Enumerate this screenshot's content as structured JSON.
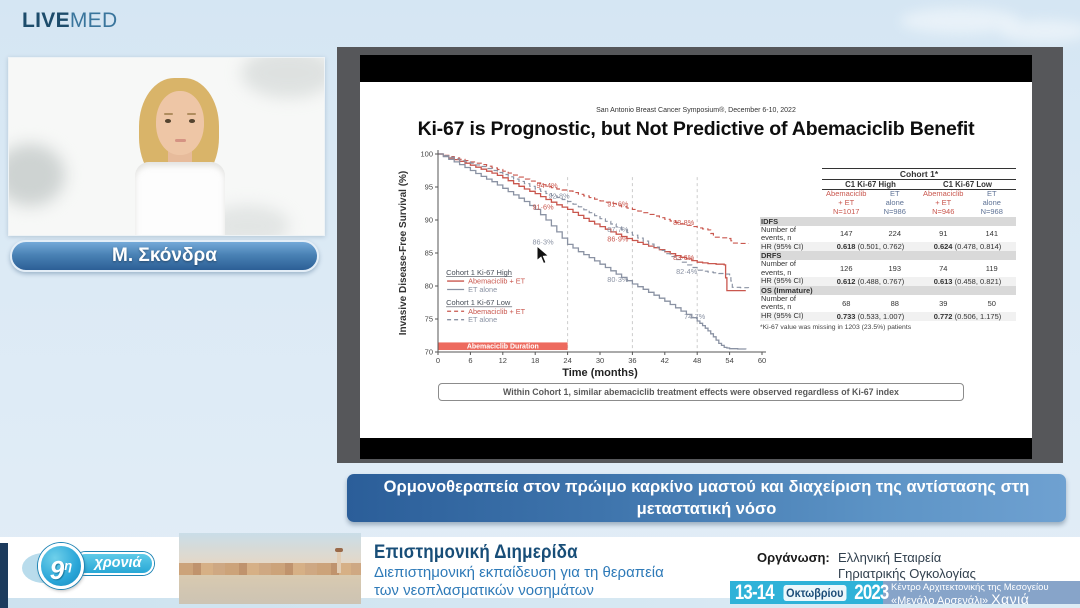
{
  "header": {
    "logo": {
      "live": "LIVE",
      "med": "MED"
    }
  },
  "speaker": {
    "name": "Μ. Σκόνδρα"
  },
  "session_title": "Ορμονοθεραπεία στον πρώιμο καρκίνο μαστού και διαχείριση της αντίστασης στη μεταστατική νόσο",
  "slide": {
    "symposium": "San Antonio Breast Cancer Symposium®, December 6-10, 2022",
    "title": "Ki-67 is Prognostic, but Not Predictive of Abemaciclib Benefit",
    "caption": "Within Cohort 1, similar abemaciclib treatment effects were observed regardless of Ki-67 index",
    "table": {
      "title": "Cohort 1*",
      "group_headers": [
        "C1 Ki-67 High",
        "C1 Ki-67 Low"
      ],
      "col_headers": [
        {
          "lines": [
            "Abemaciclib",
            "+ ET",
            "N=1017"
          ],
          "tone": "red"
        },
        {
          "lines": [
            "ET",
            "alone",
            "N=986"
          ],
          "tone": "blue"
        },
        {
          "lines": [
            "Abemaciclib",
            "+ ET",
            "N=946"
          ],
          "tone": "red"
        },
        {
          "lines": [
            "ET",
            "alone",
            "N=968"
          ],
          "tone": "blue"
        }
      ],
      "sections": [
        {
          "header": "IDFS",
          "events_label": "Number of events, n",
          "events": [
            "147",
            "224",
            "91",
            "141"
          ],
          "hr_label": "HR (95% CI)",
          "hr": [
            {
              "value": "0.618",
              "ci": " (0.501, 0.762)"
            },
            {
              "value": "0.624",
              "ci": " (0.478, 0.814)"
            }
          ]
        },
        {
          "header": "DRFS",
          "events_label": "Number of events, n",
          "events": [
            "126",
            "193",
            "74",
            "119"
          ],
          "hr_label": "HR (95% CI)",
          "hr": [
            {
              "value": "0.612",
              "ci": " (0.488, 0.767)"
            },
            {
              "value": "0.613",
              "ci": " (0.458, 0.821)"
            }
          ]
        },
        {
          "header": "OS (Immature)",
          "events_label": "Number of events, n",
          "events": [
            "68",
            "88",
            "39",
            "50"
          ],
          "hr_label": "HR (95% CI)",
          "hr": [
            {
              "value": "0.733",
              "ci": " (0.533, 1.007)"
            },
            {
              "value": "0.772",
              "ci": " (0.506, 1.175)"
            }
          ]
        }
      ],
      "footnote": "*Ki-67 value was missing in 1203 (23.5%) patients"
    }
  },
  "chart_data": {
    "type": "line",
    "subtype": "kaplan-meier",
    "title": "Ki-67 is Prognostic, but Not Predictive of Abemaciclib Benefit",
    "xlabel": "Time (months)",
    "ylabel": "Invasive Disease-Free Survival (%)",
    "xlim": [
      0,
      60
    ],
    "ylim": [
      70,
      100
    ],
    "xticks": [
      0,
      6,
      12,
      18,
      24,
      30,
      36,
      42,
      48,
      54,
      60
    ],
    "yticks": [
      70,
      75,
      80,
      85,
      90,
      95,
      100
    ],
    "grid": false,
    "reference_lines_x": [
      24,
      36,
      48
    ],
    "legend_position": "lower-left",
    "legend": [
      {
        "title": "Cohort 1 Ki-67 High",
        "items": [
          {
            "label": "Abemaciclib + ET",
            "style": "solid",
            "color": "#c9574e"
          },
          {
            "label": "ET alone",
            "style": "solid",
            "color": "#8a92a3"
          }
        ]
      },
      {
        "title": "Cohort 1 Ki-67 Low",
        "items": [
          {
            "label": "Abemaciclib + ET",
            "style": "dashed",
            "color": "#c9574e"
          },
          {
            "label": "ET alone",
            "style": "dashed",
            "color": "#8a92a3"
          }
        ]
      }
    ],
    "duration_bar": {
      "label": "Abemaciclib Duration",
      "x_start": 0,
      "x_end": 24,
      "color": "#ed6a5e"
    },
    "series": [
      {
        "name": "Cohort 1 Ki-67 High — Abemaciclib + ET",
        "style": "solid",
        "color": "#c9574e",
        "points": [
          [
            0,
            100
          ],
          [
            2,
            99.4
          ],
          [
            4,
            98.9
          ],
          [
            6,
            98.3
          ],
          [
            8,
            97.7
          ],
          [
            10,
            97.1
          ],
          [
            12,
            96.4
          ],
          [
            14,
            95.5
          ],
          [
            16,
            94.7
          ],
          [
            18,
            94.0
          ],
          [
            20,
            93.1
          ],
          [
            22,
            92.3
          ],
          [
            24,
            91.6
          ],
          [
            26,
            90.7
          ],
          [
            28,
            89.8
          ],
          [
            30,
            89.0
          ],
          [
            32,
            88.2
          ],
          [
            34,
            87.5
          ],
          [
            36,
            86.9
          ],
          [
            38,
            86.3
          ],
          [
            40,
            85.8
          ],
          [
            42,
            85.2
          ],
          [
            44,
            84.6
          ],
          [
            46,
            84.1
          ],
          [
            48,
            83.6
          ],
          [
            50,
            83.4
          ],
          [
            53,
            83.2
          ],
          [
            53.5,
            79.3
          ],
          [
            57,
            79.3
          ]
        ],
        "labels": [
          {
            "x": 24,
            "y": 91.6,
            "text": "91·6%",
            "dx": -14,
            "dy": 0
          },
          {
            "x": 36,
            "y": 86.9,
            "text": "86·9%",
            "dx": -4,
            "dy": 1
          },
          {
            "x": 48,
            "y": 83.6,
            "text": "83·6%",
            "dx": -3,
            "dy": -2
          }
        ]
      },
      {
        "name": "Cohort 1 Ki-67 High — ET alone",
        "style": "solid",
        "color": "#8a92a3",
        "points": [
          [
            0,
            100
          ],
          [
            2,
            99.2
          ],
          [
            4,
            98.4
          ],
          [
            6,
            97.5
          ],
          [
            8,
            96.6
          ],
          [
            10,
            95.8
          ],
          [
            12,
            94.8
          ],
          [
            14,
            93.8
          ],
          [
            16,
            92.8
          ],
          [
            18,
            91.6
          ],
          [
            20,
            90.0
          ],
          [
            22,
            88.2
          ],
          [
            24,
            86.3
          ],
          [
            26,
            85.2
          ],
          [
            28,
            84.3
          ],
          [
            30,
            83.3
          ],
          [
            32,
            82.3
          ],
          [
            34,
            81.3
          ],
          [
            36,
            80.3
          ],
          [
            38,
            79.5
          ],
          [
            40,
            78.6
          ],
          [
            42,
            77.7
          ],
          [
            44,
            76.7
          ],
          [
            46,
            75.7
          ],
          [
            48,
            74.7
          ],
          [
            49,
            74.0
          ],
          [
            50,
            73.2
          ],
          [
            51,
            72.3
          ],
          [
            52,
            71.3
          ],
          [
            53,
            70.7
          ],
          [
            54,
            70.5
          ],
          [
            57,
            70.4
          ]
        ],
        "labels": [
          {
            "x": 24,
            "y": 86.3,
            "text": "86·3%",
            "dx": -14,
            "dy": 0
          },
          {
            "x": 36,
            "y": 80.3,
            "text": "80·3%",
            "dx": -4,
            "dy": -2
          },
          {
            "x": 48,
            "y": 74.7,
            "text": "74·7%",
            "dx": 8,
            "dy": -2
          }
        ]
      },
      {
        "name": "Cohort 1 Ki-67 Low — Abemaciclib + ET",
        "style": "dashed",
        "color": "#c9574e",
        "points": [
          [
            0,
            100
          ],
          [
            2,
            99.6
          ],
          [
            4,
            99.2
          ],
          [
            6,
            98.8
          ],
          [
            8,
            98.4
          ],
          [
            10,
            97.9
          ],
          [
            12,
            97.4
          ],
          [
            14,
            96.8
          ],
          [
            16,
            96.2
          ],
          [
            18,
            95.6
          ],
          [
            20,
            95.1
          ],
          [
            22,
            94.7
          ],
          [
            24,
            94.4
          ],
          [
            26,
            93.9
          ],
          [
            28,
            93.4
          ],
          [
            30,
            92.9
          ],
          [
            32,
            92.5
          ],
          [
            34,
            92.0
          ],
          [
            36,
            91.6
          ],
          [
            38,
            91.1
          ],
          [
            40,
            90.6
          ],
          [
            42,
            90.1
          ],
          [
            44,
            89.6
          ],
          [
            46,
            89.2
          ],
          [
            48,
            88.8
          ],
          [
            50,
            88.5
          ],
          [
            51,
            87.4
          ],
          [
            54,
            87.2
          ],
          [
            54.5,
            86.5
          ],
          [
            57.5,
            86.4
          ]
        ],
        "labels": [
          {
            "x": 24,
            "y": 94.4,
            "text": "94·4%",
            "dx": -10,
            "dy": -3
          },
          {
            "x": 36,
            "y": 91.6,
            "text": "91·6%",
            "dx": -4,
            "dy": -3
          },
          {
            "x": 48,
            "y": 88.8,
            "text": "88·8%",
            "dx": -3,
            "dy": -3
          }
        ]
      },
      {
        "name": "Cohort 1 Ki-67 Low — ET alone",
        "style": "dashed",
        "color": "#8a92a3",
        "points": [
          [
            0,
            100
          ],
          [
            2,
            99.5
          ],
          [
            4,
            99.0
          ],
          [
            6,
            98.6
          ],
          [
            8,
            98.1
          ],
          [
            10,
            97.5
          ],
          [
            12,
            96.9
          ],
          [
            14,
            96.2
          ],
          [
            16,
            95.5
          ],
          [
            18,
            94.7
          ],
          [
            20,
            94.0
          ],
          [
            22,
            93.4
          ],
          [
            24,
            92.8
          ],
          [
            26,
            92.0
          ],
          [
            28,
            91.1
          ],
          [
            30,
            90.2
          ],
          [
            32,
            89.4
          ],
          [
            34,
            88.5
          ],
          [
            36,
            87.7
          ],
          [
            38,
            86.8
          ],
          [
            40,
            85.9
          ],
          [
            42,
            84.9
          ],
          [
            44,
            84.0
          ],
          [
            46,
            83.2
          ],
          [
            48,
            82.4
          ],
          [
            50,
            82.1
          ],
          [
            52,
            81.9
          ],
          [
            54,
            81.7
          ],
          [
            54.5,
            79.8
          ],
          [
            57.5,
            79.7
          ]
        ],
        "labels": [
          {
            "x": 24,
            "y": 92.8,
            "text": "92·8%",
            "dx": 2,
            "dy": -3
          },
          {
            "x": 36,
            "y": 87.7,
            "text": "87·7%",
            "dx": -4,
            "dy": -3
          },
          {
            "x": 48,
            "y": 82.4,
            "text": "82·4%",
            "dx": 0,
            "dy": 4
          }
        ]
      }
    ]
  },
  "footer": {
    "edition_badge": {
      "number": "9",
      "suffix": "η",
      "word": "χρονιά"
    },
    "event_type": "Επιστημονική Διημερίδα",
    "event_subtitle_line1": "Διεπιστημονική εκπαίδευση για τη θεραπεία",
    "event_subtitle_line2": "των νεοπλασματικών νοσημάτων",
    "organizer_label": "Οργάνωση:",
    "organizer_line1": "Ελληνική Εταιρεία",
    "organizer_line2": "Γηριατρικής Ογκολογίας",
    "date": {
      "days": "13-14",
      "month": "Οκτωβρίου",
      "year": "2023"
    },
    "venue_line1": "Κέντρο Αρχιτεκτονικής της Μεσογείου",
    "venue_line2_prefix": "«Μεγάλο Αρσενάλι»",
    "venue_city": "Χανιά"
  }
}
